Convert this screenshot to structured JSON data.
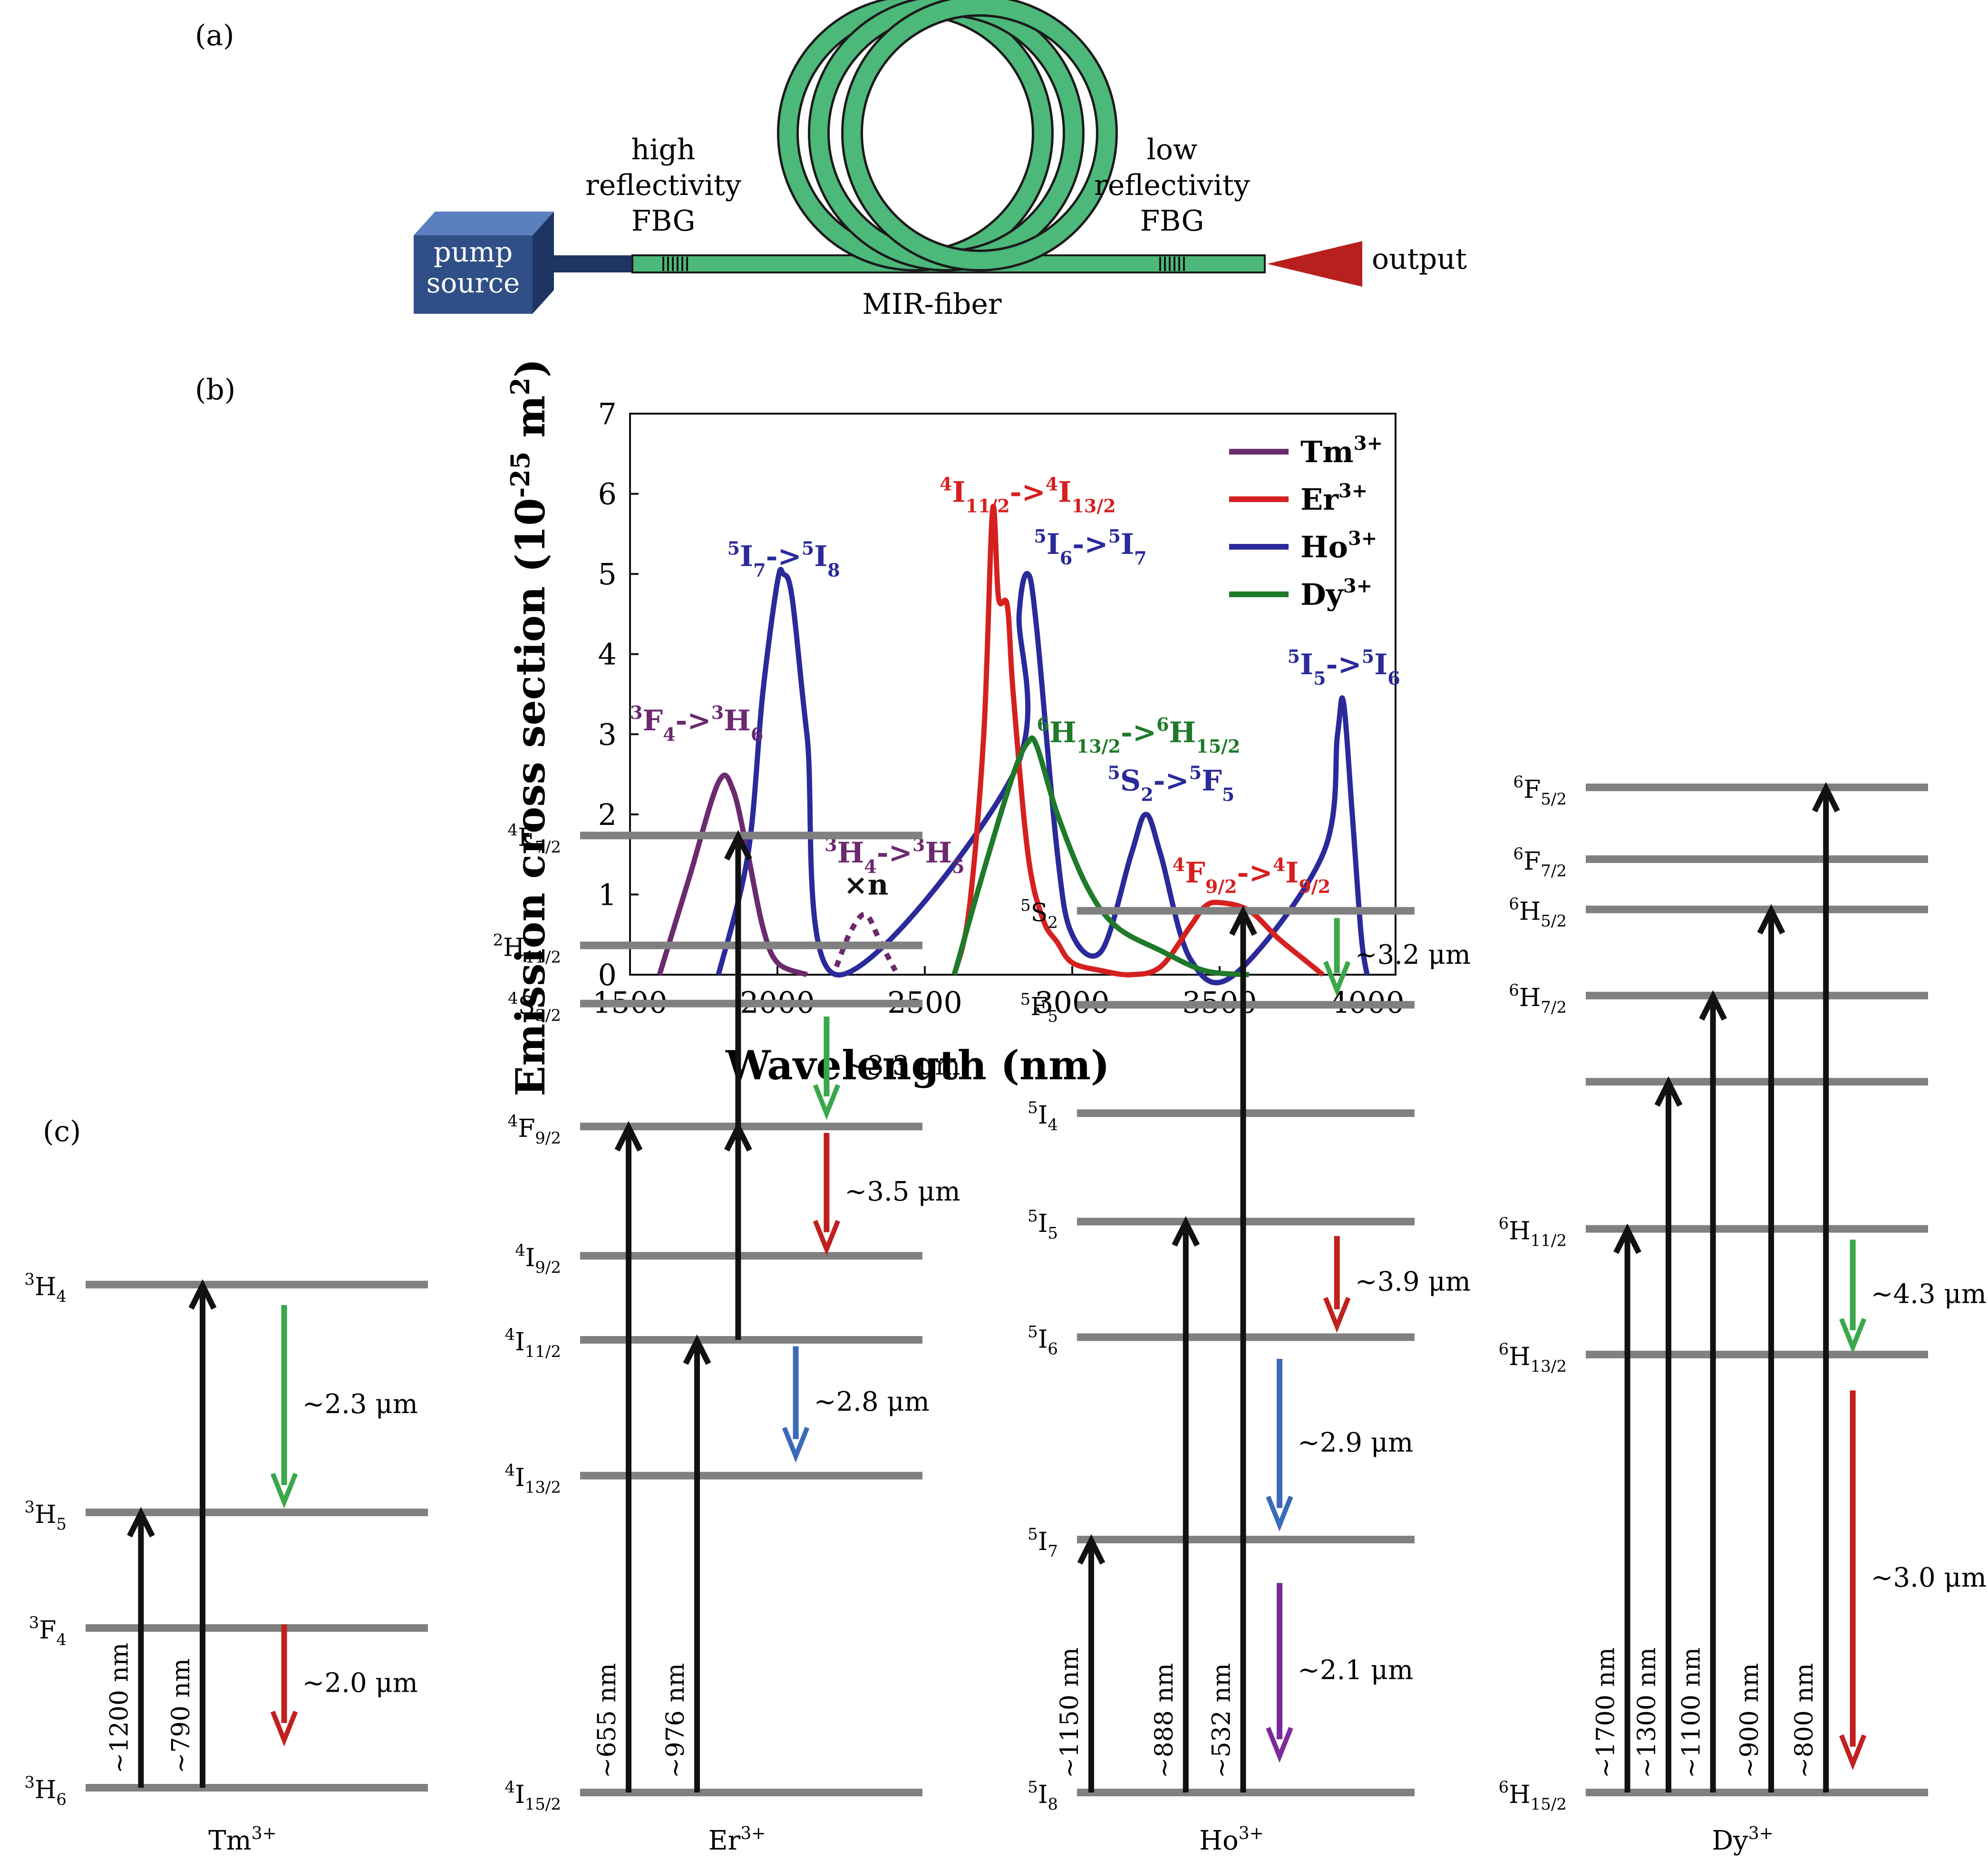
{
  "colors": {
    "fiber": "#4cb87a",
    "fiber_stroke": "#1a1a1a",
    "pump_front": "#2f4f86",
    "pump_top": "#5b7fbf",
    "pump_side": "#1e3563",
    "output": "#b8201e",
    "level": "#808080",
    "tm": "#6b2a6e",
    "er": "#d62020",
    "ho": "#2a2a9a",
    "dy": "#1f7a2a",
    "arrow_green": "#3aa84a",
    "arrow_red": "#c0201e",
    "arrow_blue": "#3a6ab8",
    "arrow_purple": "#7a2a9a"
  },
  "panel_a": {
    "label": "(a)",
    "pump_line1": "pump",
    "pump_line2": "source",
    "hr_line1": "high",
    "hr_line2": "reflectivity",
    "hr_line3": "FBG",
    "lr_line1": "low",
    "lr_line2": "reflectivity",
    "lr_line3": "FBG",
    "fiber_label": "MIR-fiber",
    "output_label": "output"
  },
  "chart_data": {
    "panel_label": "(b)",
    "type": "line",
    "xlabel": "Wavelength (nm)",
    "ylabel": "Emission cross section (10^-25 m^2)",
    "xlim": [
      1500,
      4000
    ],
    "ylim": [
      0,
      7
    ],
    "xticks": [
      1500,
      2000,
      2500,
      3000,
      3500,
      4000
    ],
    "yticks": [
      0,
      1,
      2,
      3,
      4,
      5,
      6,
      7
    ],
    "legend_position": "top-right",
    "series": [
      {
        "name": "Tm3+",
        "color_key": "tm",
        "x": [
          1600,
          1700,
          1800,
          1850,
          1900,
          1950,
          2000,
          2100
        ],
        "y": [
          0,
          1.2,
          2.4,
          2.3,
          1.5,
          0.6,
          0.15,
          0
        ]
      },
      {
        "name": "Tm3+ 3H4->3H5 (×n)",
        "color_key": "tm",
        "dashed": true,
        "x": [
          2200,
          2250,
          2300,
          2350,
          2400
        ],
        "y": [
          0.1,
          0.55,
          0.75,
          0.4,
          0.05
        ]
      },
      {
        "name": "Ho3+",
        "color_key": "ho",
        "x": [
          1800,
          1900,
          1950,
          2000,
          2020,
          2050,
          2100,
          2200,
          2800,
          2820,
          2850,
          2880,
          2950,
          3000,
          3100,
          3200,
          3250,
          3300,
          3400,
          3550,
          3850,
          3900,
          3920,
          3950,
          3980,
          4000
        ],
        "y": [
          0,
          1.5,
          3.5,
          4.9,
          5.0,
          4.7,
          3.0,
          0,
          2.5,
          4.5,
          5.0,
          4.3,
          1.5,
          0.5,
          0.3,
          1.5,
          2.0,
          1.5,
          0.2,
          0,
          1.5,
          3.0,
          3.4,
          2.0,
          0.5,
          0
        ]
      },
      {
        "name": "Er3+",
        "color_key": "er",
        "x": [
          2600,
          2650,
          2700,
          2730,
          2750,
          2780,
          2800,
          2850,
          2900,
          2950,
          3000,
          3100,
          3200,
          3300,
          3400,
          3450,
          3500,
          3600,
          3700,
          3800,
          3850
        ],
        "y": [
          0,
          0.8,
          3.0,
          5.8,
          4.7,
          4.6,
          3.5,
          1.5,
          0.7,
          0.4,
          0.15,
          0.05,
          0,
          0.1,
          0.6,
          0.85,
          0.9,
          0.8,
          0.45,
          0.15,
          0
        ]
      },
      {
        "name": "Dy3+",
        "color_key": "dy",
        "x": [
          2600,
          2700,
          2800,
          2850,
          2880,
          2950,
          3050,
          3150,
          3300,
          3450,
          3600
        ],
        "y": [
          0,
          1.3,
          2.5,
          2.9,
          2.85,
          2.0,
          1.1,
          0.6,
          0.3,
          0.05,
          0
        ]
      }
    ],
    "legend": [
      {
        "base": "Tm",
        "sup": "3+",
        "color_key": "tm"
      },
      {
        "base": "Er",
        "sup": "3+",
        "color_key": "er"
      },
      {
        "base": "Ho",
        "sup": "3+",
        "color_key": "ho"
      },
      {
        "base": "Dy",
        "sup": "3+",
        "color_key": "dy"
      }
    ],
    "annotations": [
      {
        "id": "tm1",
        "sup1": "3",
        "t1": "F",
        "sub1": "4",
        "arrow": "->",
        "sup2": "3",
        "t2": "H",
        "sub2": "6",
        "color_key": "tm",
        "wl": 1500,
        "val": 3.05
      },
      {
        "id": "ho1",
        "sup1": "5",
        "t1": "I",
        "sub1": "7",
        "arrow": "->",
        "sup2": "5",
        "t2": "I",
        "sub2": "8",
        "color_key": "ho",
        "wl": 1830,
        "val": 5.1
      },
      {
        "id": "tm2",
        "sup1": "3",
        "t1": "H",
        "sub1": "4",
        "arrow": "->",
        "sup2": "3",
        "t2": "H",
        "sub2": "5",
        "color_key": "tm",
        "wl": 2160,
        "val": 1.4
      },
      {
        "id": "er1",
        "sup1": "4",
        "t1": "I",
        "sub1": "11/2",
        "arrow": "->",
        "sup2": "4",
        "t2": "I",
        "sub2": "13/2",
        "color_key": "er",
        "wl": 2550,
        "val": 5.9
      },
      {
        "id": "ho2",
        "sup1": "5",
        "t1": "I",
        "sub1": "6",
        "arrow": "->",
        "sup2": "5",
        "t2": "I",
        "sub2": "7",
        "color_key": "ho",
        "wl": 2870,
        "val": 5.25
      },
      {
        "id": "dy1",
        "sup1": "6",
        "t1": "H",
        "sub1": "13/2",
        "arrow": "->",
        "sup2": "6",
        "t2": "H",
        "sub2": "15/2",
        "color_key": "dy",
        "wl": 2880,
        "val": 2.9
      },
      {
        "id": "ho3",
        "sup1": "",
        "t1": "S",
        "sub1": "2",
        "arrow": "->",
        "sup2": "5",
        "t2": "F",
        "sub2": "5",
        "color_key": "ho",
        "wl": 3120,
        "val": 2.3,
        "lead": "5"
      },
      {
        "id": "er2",
        "sup1": "4",
        "t1": "F",
        "sub1": "9/2",
        "arrow": "->",
        "sup2": "4",
        "t2": "I",
        "sub2": "9/2",
        "color_key": "er",
        "wl": 3340,
        "val": 1.15
      },
      {
        "id": "ho4",
        "sup1": "5",
        "t1": "I",
        "sub1": "5",
        "arrow": "->",
        "sup2": "5",
        "t2": "I",
        "sub2": "6",
        "color_key": "ho",
        "wl": 3730,
        "val": 3.75
      }
    ],
    "times_n": "×n"
  },
  "panel_c": {
    "label": "(c)",
    "ions": [
      {
        "name": "Tm",
        "sup": "3+",
        "levels": [
          {
            "base": "H",
            "sup": "3",
            "sub": "4",
            "e": 7.4
          },
          {
            "base": "H",
            "sup": "3",
            "sub": "5",
            "e": 4.05
          },
          {
            "base": "F",
            "sup": "3",
            "sub": "4",
            "e": 2.35
          },
          {
            "base": "H",
            "sup": "3",
            "sub": "6",
            "e": 0
          }
        ],
        "pumps": [
          {
            "label": "~1200 nm",
            "from": 0,
            "to": 4.05,
            "xf": 0.12
          },
          {
            "label": "~790 nm",
            "from": 0,
            "to": 7.4,
            "xf": 0.3
          }
        ],
        "emissions": [
          {
            "label": "~2.3 μm",
            "from": 7.1,
            "to": 4.2,
            "xf": 0.58,
            "color_key": "arrow_green"
          },
          {
            "label": "~2.0 μm",
            "from": 2.4,
            "to": 0.7,
            "xf": 0.58,
            "color_key": "arrow_red"
          }
        ]
      },
      {
        "name": "Er",
        "sup": "3+",
        "levels": [
          {
            "base": "F",
            "sup": "4",
            "sub": "7/2",
            "e": 14.8
          },
          {
            "base": "H",
            "sup": "2",
            "sub": "11/2",
            "e": 13.1
          },
          {
            "base": "S",
            "sup": "4",
            "sub": "3/2",
            "e": 12.2
          },
          {
            "base": "F",
            "sup": "4",
            "sub": "9/2",
            "e": 10.3
          },
          {
            "base": "I",
            "sup": "4",
            "sub": "9/2",
            "e": 8.3
          },
          {
            "base": "I",
            "sup": "4",
            "sub": "11/2",
            "e": 7.0
          },
          {
            "base": "I",
            "sup": "4",
            "sub": "13/2",
            "e": 4.9
          },
          {
            "base": "I",
            "sup": "4",
            "sub": "15/2",
            "e": 0
          }
        ],
        "pumps": [
          {
            "label": "~655 nm",
            "from": 0,
            "to": 10.3,
            "xf": 0.1
          },
          {
            "label": "~976 nm",
            "from": 0,
            "to": 7.0,
            "xf": 0.3
          },
          {
            "label": "",
            "from": 7.0,
            "to": 10.3,
            "xf": 0.42
          },
          {
            "label": "",
            "from": 10.3,
            "to": 14.8,
            "xf": 0.42
          }
        ],
        "emissions": [
          {
            "label": "~3.3 μm",
            "from": 12.0,
            "to": 10.5,
            "xf": 0.72,
            "color_key": "arrow_green"
          },
          {
            "label": "~3.5 μm",
            "from": 10.2,
            "to": 8.4,
            "xf": 0.72,
            "color_key": "arrow_red"
          },
          {
            "label": "~2.8 μm",
            "from": 6.9,
            "to": 5.2,
            "xf": 0.63,
            "color_key": "arrow_blue"
          }
        ]
      },
      {
        "name": "Ho",
        "sup": "3+",
        "levels": [
          {
            "base": "S",
            "sup": "5",
            "sub": "2",
            "e": 12.2
          },
          {
            "base": "F",
            "sup": "5",
            "sub": "5",
            "e": 10.9
          },
          {
            "base": "I",
            "sup": "5",
            "sub": "4",
            "e": 9.4
          },
          {
            "base": "I",
            "sup": "5",
            "sub": "5",
            "e": 7.9
          },
          {
            "base": "I",
            "sup": "5",
            "sub": "6",
            "e": 6.3
          },
          {
            "base": "I",
            "sup": "5",
            "sub": "7",
            "e": 3.5
          },
          {
            "base": "I",
            "sup": "5",
            "sub": "8",
            "e": 0
          }
        ],
        "pumps": [
          {
            "label": "~1150 nm",
            "from": 0,
            "to": 3.5,
            "xf": 0.0
          },
          {
            "label": "~888 nm",
            "from": 0,
            "to": 7.9,
            "xf": 0.28
          },
          {
            "label": "~532 nm",
            "from": 0,
            "to": 12.2,
            "xf": 0.45
          }
        ],
        "emissions": [
          {
            "label": "~3.2 μm",
            "from": 12.1,
            "to": 11.1,
            "xf": 0.77,
            "color_key": "arrow_green"
          },
          {
            "label": "~3.9 μm",
            "from": 7.7,
            "to": 6.45,
            "xf": 0.77,
            "color_key": "arrow_red"
          },
          {
            "label": "~2.9 μm",
            "from": 6.0,
            "to": 3.7,
            "xf": 0.6,
            "color_key": "arrow_blue"
          },
          {
            "label": "~2.1 μm",
            "from": 2.9,
            "to": 0.5,
            "xf": 0.6,
            "color_key": "arrow_purple"
          }
        ]
      },
      {
        "name": "Dy",
        "sup": "3+",
        "levels": [
          {
            "base": "F",
            "sup": "6",
            "sub": "5/2",
            "e": 14.0
          },
          {
            "base": "F",
            "sup": "6",
            "sub": "7/2",
            "e": 13.0
          },
          {
            "base": "H",
            "sup": "6",
            "sub": "5/2",
            "e": 12.3
          },
          {
            "base": "H",
            "sup": "6",
            "sub": "7/2",
            "e": 11.1
          },
          {
            "base": "",
            "sup": "",
            "sub": "",
            "e": 9.9
          },
          {
            "base": "H",
            "sup": "6",
            "sub": "11/2",
            "e": 7.85
          },
          {
            "base": "H",
            "sup": "6",
            "sub": "13/2",
            "e": 6.1
          },
          {
            "base": "H",
            "sup": "6",
            "sub": "15/2",
            "e": 0
          }
        ],
        "pumps": [
          {
            "label": "~1700 nm",
            "from": 0,
            "to": 7.85,
            "xf": 0.08
          },
          {
            "label": "~1300 nm",
            "from": 0,
            "to": 9.9,
            "xf": 0.2
          },
          {
            "label": "~1100 nm",
            "from": 0,
            "to": 11.1,
            "xf": 0.33
          },
          {
            "label": "~900 nm",
            "from": 0,
            "to": 12.3,
            "xf": 0.5
          },
          {
            "label": "~800 nm",
            "from": 0,
            "to": 14.0,
            "xf": 0.66
          }
        ],
        "emissions": [
          {
            "label": "~4.3 μm",
            "from": 7.7,
            "to": 6.2,
            "xf": 0.78,
            "color_key": "arrow_green"
          },
          {
            "label": "~3.0 μm",
            "from": 5.6,
            "to": 0.4,
            "xf": 0.78,
            "color_key": "arrow_red"
          }
        ]
      }
    ]
  }
}
